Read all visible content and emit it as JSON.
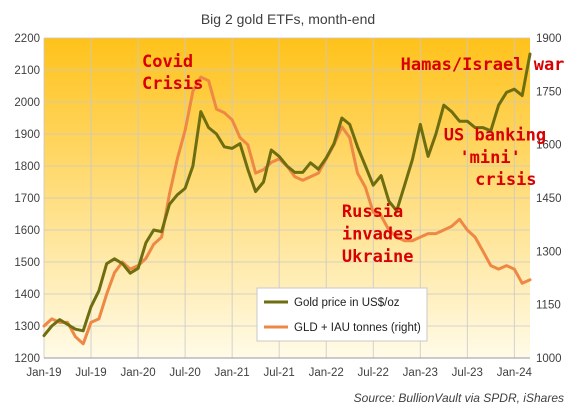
{
  "chart_data": {
    "type": "line",
    "title": "Big 2 gold ETFs, month-end",
    "source": "Source: BullionVault via SPDR, iShares",
    "x_tick_labels": [
      "Jan-19",
      "Jul-19",
      "Jan-20",
      "Jul-20",
      "Jan-21",
      "Jul-21",
      "Jan-22",
      "Jul-22",
      "Jan-23",
      "Jul-23",
      "Jan-24"
    ],
    "y_left": {
      "ylim": [
        1200,
        2200
      ],
      "ticks": [
        1200,
        1300,
        1400,
        1500,
        1600,
        1700,
        1800,
        1900,
        2000,
        2100,
        2200
      ]
    },
    "y_right": {
      "ylim": [
        1000,
        1900
      ],
      "ticks": [
        1000,
        1150,
        1300,
        1450,
        1600,
        1750,
        1900
      ]
    },
    "series": [
      {
        "name": "Gold price in US$/oz",
        "axis": "left",
        "color": "#6e6e10",
        "values": [
          1270,
          1300,
          1320,
          1305,
          1290,
          1285,
          1360,
          1410,
          1495,
          1510,
          1495,
          1465,
          1480,
          1560,
          1600,
          1595,
          1680,
          1710,
          1730,
          1800,
          1970,
          1920,
          1900,
          1860,
          1855,
          1870,
          1790,
          1720,
          1750,
          1850,
          1830,
          1800,
          1780,
          1780,
          1810,
          1790,
          1825,
          1870,
          1950,
          1930,
          1860,
          1800,
          1740,
          1770,
          1690,
          1660,
          1740,
          1820,
          1930,
          1830,
          1900,
          1990,
          1970,
          1940,
          1940,
          1920,
          1920,
          1910,
          1990,
          2030,
          2040,
          2020,
          2150
        ]
      },
      {
        "name": "GLD + IAU tonnes (right)",
        "axis": "right",
        "color": "#ee8844",
        "values": [
          1090,
          1110,
          1100,
          1100,
          1060,
          1040,
          1100,
          1110,
          1180,
          1240,
          1270,
          1250,
          1260,
          1280,
          1320,
          1340,
          1460,
          1560,
          1640,
          1750,
          1790,
          1780,
          1700,
          1690,
          1670,
          1620,
          1600,
          1520,
          1530,
          1550,
          1560,
          1540,
          1510,
          1500,
          1510,
          1520,
          1560,
          1600,
          1650,
          1620,
          1520,
          1480,
          1410,
          1400,
          1360,
          1340,
          1330,
          1330,
          1340,
          1350,
          1350,
          1360,
          1370,
          1390,
          1360,
          1340,
          1300,
          1260,
          1250,
          1260,
          1250,
          1210,
          1220
        ]
      }
    ],
    "annotations": [
      {
        "text": "Covid",
        "x": 12.5,
        "y": 2110
      },
      {
        "text": "Crisis",
        "x": 12.5,
        "y": 2040
      },
      {
        "text": "Hamas/Israel war",
        "x": 45.5,
        "y": 2100
      },
      {
        "text": "US banking",
        "x": 51,
        "y": 1880
      },
      {
        "text": "'mini'",
        "x": 53,
        "y": 1810
      },
      {
        "text": "crisis",
        "x": 55,
        "y": 1740
      },
      {
        "text": "Russia",
        "x": 38,
        "y": 1640
      },
      {
        "text": "invades",
        "x": 38,
        "y": 1570
      },
      {
        "text": "Ukraine",
        "x": 38,
        "y": 1500
      }
    ],
    "legend_placement": "bottom-center",
    "background": {
      "top": "#ffc21a",
      "bottom": "#fffbe8"
    }
  }
}
